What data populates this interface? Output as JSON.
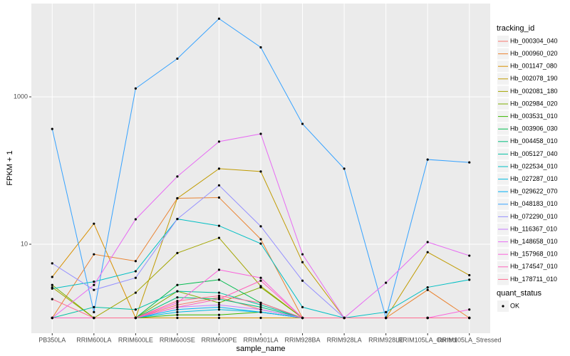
{
  "chart_data": {
    "type": "line",
    "x_label": "sample_name",
    "y_label": "FPKM + 1",
    "log_y": true,
    "grid": true,
    "legend_title": "tracking_id",
    "point_legend_title": "quant_status",
    "point_legend_label": "OK",
    "point_color": "#000000",
    "categories": [
      "PB350LA",
      "RRIM600LA",
      "RRIM600LE",
      "RRIM600SE",
      "RRIM600PE",
      "RRIM901LA",
      "RRIM928BA",
      "RRIM928LA",
      "RRIM928LE",
      "RRIM105LA_Control",
      "RRIM105LA_Stressed"
    ],
    "ylim": [
      0.62,
      18450
    ],
    "yticks": [
      10,
      1000
    ],
    "series": [
      {
        "name": "Hb_000304_040",
        "color": "#F8766D",
        "values": [
          1,
          1,
          1,
          1.5,
          1.9,
          1.3,
          1,
          1,
          1,
          1,
          1
        ]
      },
      {
        "name": "Hb_000960_020",
        "color": "#EA8331",
        "values": [
          1,
          7.3,
          5.9,
          42,
          43,
          11.7,
          1,
          1,
          1,
          2.4,
          1
        ]
      },
      {
        "name": "Hb_001147_080",
        "color": "#D89000",
        "values": [
          3.6,
          19,
          1,
          1,
          1,
          1,
          1,
          1,
          1,
          1,
          1
        ]
      },
      {
        "name": "Hb_002078_190",
        "color": "#C09B00",
        "values": [
          1,
          1,
          1,
          42,
          106,
          97,
          5.7,
          1,
          1,
          7.8,
          3.8
        ]
      },
      {
        "name": "Hb_002081_180",
        "color": "#A3A500",
        "values": [
          2.6,
          1,
          2.2,
          7.6,
          12.2,
          2.7,
          1,
          1,
          1,
          1,
          1
        ]
      },
      {
        "name": "Hb_002984_020",
        "color": "#7CAE00",
        "values": [
          2.8,
          1,
          1,
          2.3,
          1.6,
          2.6,
          1,
          1,
          1,
          1,
          1
        ]
      },
      {
        "name": "Hb_003531_010",
        "color": "#39B600",
        "values": [
          1,
          1,
          1,
          1.1,
          1.1,
          1.2,
          1,
          1,
          1,
          1,
          1
        ]
      },
      {
        "name": "Hb_003906_030",
        "color": "#00BB4E",
        "values": [
          1,
          1,
          1,
          2.8,
          3.3,
          1.6,
          1,
          1,
          1,
          1,
          1
        ]
      },
      {
        "name": "Hb_004458_010",
        "color": "#00BF7D",
        "values": [
          1,
          1,
          1,
          1.9,
          1.8,
          1.4,
          1,
          1,
          1,
          1,
          1
        ]
      },
      {
        "name": "Hb_005127_040",
        "color": "#00C1A3",
        "values": [
          1,
          1.4,
          1.3,
          2.3,
          2.2,
          1.5,
          1,
          1,
          1,
          1,
          1
        ]
      },
      {
        "name": "Hb_022534_010",
        "color": "#00BFC4",
        "values": [
          2.5,
          3.1,
          4.3,
          22,
          17.8,
          10.2,
          1.4,
          1,
          1.2,
          2.6,
          3.3
        ]
      },
      {
        "name": "Hb_027287_010",
        "color": "#00BAE0",
        "values": [
          1,
          1,
          1,
          1.2,
          1.3,
          1.2,
          1,
          1,
          1,
          1,
          1
        ]
      },
      {
        "name": "Hb_029622_070",
        "color": "#00B0F6",
        "values": [
          1,
          1,
          1,
          1.3,
          1.4,
          1.2,
          1,
          1,
          1,
          1,
          1
        ]
      },
      {
        "name": "Hb_048183_010",
        "color": "#35A2FF",
        "values": [
          367,
          1.2,
          1300,
          3300,
          11500,
          4700,
          430,
          106,
          1,
          141,
          129
        ]
      },
      {
        "name": "Hb_072290_010",
        "color": "#9590FF",
        "values": [
          5.5,
          2.4,
          3.5,
          22,
          63,
          17.5,
          3.2,
          1,
          1,
          1,
          1
        ]
      },
      {
        "name": "Hb_116367_010",
        "color": "#C77CFF",
        "values": [
          1,
          1,
          1,
          1.4,
          1.5,
          1.3,
          1,
          1,
          1,
          1,
          1
        ]
      },
      {
        "name": "Hb_148658_010",
        "color": "#E76BF3",
        "values": [
          1,
          2.8,
          21.8,
          83,
          247,
          315,
          7.3,
          1,
          3,
          10.7,
          7
        ]
      },
      {
        "name": "Hb_157968_010",
        "color": "#FA62DB",
        "values": [
          1,
          1,
          1,
          1.6,
          4.5,
          3.5,
          1,
          1,
          1,
          1,
          1.3
        ]
      },
      {
        "name": "Hb_174547_010",
        "color": "#FF62BC",
        "values": [
          1,
          1,
          1,
          1.4,
          1.8,
          3.2,
          1,
          1,
          1,
          1,
          1
        ]
      },
      {
        "name": "Hb_178711_010",
        "color": "#FF6C91",
        "values": [
          1.8,
          1,
          1,
          1.7,
          2,
          1.6,
          1,
          1,
          1,
          1,
          1
        ]
      }
    ]
  }
}
